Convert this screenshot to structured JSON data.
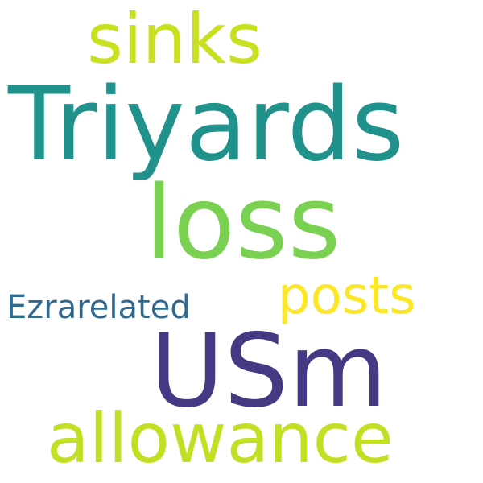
{
  "words": [
    {
      "id": "triyards",
      "text": "Triyards",
      "color": "#21918c"
    },
    {
      "id": "usm",
      "text": "USm",
      "color": "#443a83"
    },
    {
      "id": "loss",
      "text": "loss",
      "color": "#7ad151"
    },
    {
      "id": "sinks",
      "text": "sinks",
      "color": "#c8e020"
    },
    {
      "id": "allowance",
      "text": "allowance",
      "color": "#c2df23"
    },
    {
      "id": "posts",
      "text": "posts",
      "color": "#fde725"
    },
    {
      "id": "ezrarelated",
      "text": "Ezrarelated",
      "color": "#31688e"
    }
  ]
}
